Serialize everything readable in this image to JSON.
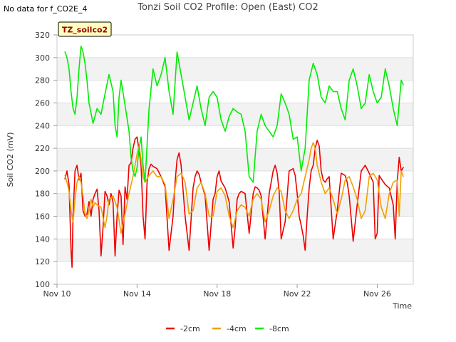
{
  "header": {
    "no_data_text": "No data for f_CO2E_4",
    "title": "Tonzi Soil CO2 Profile: Open (East) CO2"
  },
  "chart_data": {
    "type": "line",
    "title": "Tonzi Soil CO2 Profile: Open (East) CO2",
    "xlabel": "Time",
    "ylabel": "Soil CO2 (mV)",
    "ylim": [
      100,
      320
    ],
    "yticks": [
      100,
      120,
      140,
      160,
      180,
      200,
      220,
      240,
      260,
      280,
      300,
      320
    ],
    "xlim": [
      10,
      27.8
    ],
    "xticks": [
      {
        "value": 10,
        "label": "Nov 10"
      },
      {
        "value": 14,
        "label": "Nov 14"
      },
      {
        "value": 18,
        "label": "Nov 18"
      },
      {
        "value": 22,
        "label": "Nov 22"
      },
      {
        "value": 26,
        "label": "Nov 26"
      }
    ],
    "site_label": "TZ_soilco2",
    "grid": true,
    "legend_position": "bottom",
    "series": [
      {
        "name": "-2cm",
        "color": "#ee0000",
        "x": [
          10.4,
          10.5,
          10.6,
          10.7,
          10.75,
          10.8,
          10.9,
          11.0,
          11.1,
          11.2,
          11.3,
          11.4,
          11.5,
          11.6,
          11.7,
          11.8,
          11.9,
          12.0,
          12.1,
          12.2,
          12.3,
          12.4,
          12.5,
          12.6,
          12.7,
          12.8,
          12.9,
          13.0,
          13.1,
          13.2,
          13.3,
          13.4,
          13.5,
          13.6,
          13.7,
          13.8,
          13.9,
          14.0,
          14.1,
          14.2,
          14.3,
          14.4,
          14.5,
          14.6,
          14.7,
          14.8,
          14.9,
          15.0,
          15.2,
          15.4,
          15.6,
          15.8,
          15.9,
          16.0,
          16.1,
          16.2,
          16.4,
          16.6,
          16.8,
          16.9,
          17.0,
          17.1,
          17.2,
          17.4,
          17.6,
          17.8,
          17.9,
          18.0,
          18.1,
          18.2,
          18.4,
          18.6,
          18.8,
          18.9,
          19.0,
          19.1,
          19.2,
          19.4,
          19.6,
          19.8,
          19.9,
          20.0,
          20.1,
          20.2,
          20.4,
          20.6,
          20.8,
          20.9,
          21.0,
          21.1,
          21.2,
          21.4,
          21.6,
          21.8,
          21.9,
          22.0,
          22.1,
          22.2,
          22.3,
          22.4,
          22.5,
          22.6,
          22.7,
          22.8,
          22.9,
          23.0,
          23.1,
          23.2,
          23.3,
          23.4,
          23.5,
          23.6,
          23.8,
          24.0,
          24.2,
          24.4,
          24.5,
          24.6,
          24.8,
          25.0,
          25.2,
          25.4,
          25.6,
          25.8,
          25.9,
          26.0,
          26.1,
          26.2,
          26.4,
          26.6,
          26.8,
          26.9,
          27.0,
          27.1,
          27.2,
          27.3
        ],
        "values": [
          193,
          200,
          188,
          130,
          115,
          160,
          200,
          205,
          192,
          198,
          165,
          160,
          162,
          173,
          160,
          175,
          180,
          184,
          165,
          125,
          150,
          182,
          178,
          170,
          180,
          172,
          125,
          160,
          183,
          178,
          135,
          186,
          175,
          205,
          207,
          220,
          228,
          230,
          218,
          205,
          160,
          140,
          190,
          202,
          206,
          204,
          203,
          202,
          195,
          186,
          130,
          160,
          190,
          210,
          216,
          205,
          160,
          130,
          185,
          195,
          200,
          197,
          190,
          178,
          130,
          175,
          180,
          195,
          200,
          191,
          185,
          173,
          132,
          150,
          175,
          180,
          182,
          180,
          145,
          180,
          186,
          185,
          183,
          178,
          140,
          180,
          200,
          205,
          198,
          182,
          140,
          155,
          200,
          202,
          196,
          180,
          160,
          152,
          143,
          130,
          160,
          185,
          200,
          205,
          220,
          227,
          222,
          200,
          192,
          190,
          193,
          195,
          140,
          165,
          198,
          196,
          190,
          178,
          138,
          170,
          200,
          205,
          198,
          190,
          140,
          145,
          196,
          193,
          188,
          185,
          170,
          140,
          190,
          212,
          200,
          203
        ]
      },
      {
        "name": "-4cm",
        "color": "#f0a000",
        "x": [
          10.4,
          10.5,
          10.6,
          10.7,
          10.8,
          10.9,
          11.0,
          11.1,
          11.2,
          11.3,
          11.4,
          11.5,
          11.6,
          11.7,
          11.8,
          11.9,
          12.0,
          12.2,
          12.4,
          12.5,
          12.6,
          12.8,
          13.0,
          13.2,
          13.4,
          13.6,
          13.8,
          13.9,
          14.0,
          14.1,
          14.2,
          14.3,
          14.4,
          14.6,
          14.8,
          15.0,
          15.2,
          15.4,
          15.6,
          15.8,
          16.0,
          16.2,
          16.4,
          16.6,
          16.8,
          17.0,
          17.2,
          17.4,
          17.6,
          17.8,
          18.0,
          18.2,
          18.4,
          18.6,
          18.8,
          19.0,
          19.2,
          19.4,
          19.6,
          19.8,
          20.0,
          20.2,
          20.4,
          20.6,
          20.8,
          21.0,
          21.2,
          21.4,
          21.6,
          21.8,
          22.0,
          22.2,
          22.4,
          22.6,
          22.7,
          22.8,
          22.9,
          23.0,
          23.2,
          23.4,
          23.6,
          23.8,
          24.0,
          24.2,
          24.4,
          24.6,
          24.8,
          25.0,
          25.2,
          25.4,
          25.6,
          25.8,
          26.0,
          26.2,
          26.4,
          26.6,
          26.8,
          27.0,
          27.1,
          27.2,
          27.3
        ],
        "values": [
          196,
          190,
          182,
          165,
          155,
          175,
          190,
          195,
          190,
          178,
          162,
          158,
          165,
          175,
          168,
          172,
          170,
          168,
          150,
          160,
          175,
          178,
          168,
          145,
          162,
          180,
          195,
          205,
          215,
          222,
          210,
          195,
          190,
          196,
          200,
          195,
          195,
          188,
          158,
          175,
          195,
          198,
          190,
          162,
          165,
          185,
          190,
          180,
          160,
          160,
          182,
          185,
          178,
          160,
          150,
          165,
          170,
          168,
          160,
          175,
          180,
          175,
          155,
          165,
          178,
          185,
          182,
          165,
          158,
          165,
          175,
          180,
          195,
          210,
          220,
          225,
          220,
          205,
          190,
          180,
          185,
          175,
          162,
          175,
          192,
          195,
          186,
          175,
          158,
          165,
          195,
          198,
          192,
          168,
          158,
          180,
          190,
          192,
          160,
          200,
          195
        ]
      },
      {
        "name": "-8cm",
        "color": "#00ee00",
        "x": [
          10.4,
          10.5,
          10.6,
          10.7,
          10.8,
          10.9,
          11.0,
          11.1,
          11.2,
          11.3,
          11.4,
          11.5,
          11.6,
          11.8,
          12.0,
          12.2,
          12.4,
          12.6,
          12.8,
          12.9,
          13.0,
          13.1,
          13.2,
          13.4,
          13.6,
          13.7,
          13.8,
          13.9,
          14.0,
          14.1,
          14.2,
          14.3,
          14.4,
          14.6,
          14.8,
          15.0,
          15.2,
          15.4,
          15.6,
          15.8,
          16.0,
          16.2,
          16.4,
          16.6,
          16.8,
          17.0,
          17.2,
          17.4,
          17.6,
          17.8,
          18.0,
          18.2,
          18.4,
          18.6,
          18.8,
          19.0,
          19.2,
          19.4,
          19.6,
          19.8,
          20.0,
          20.2,
          20.4,
          20.6,
          20.8,
          21.0,
          21.2,
          21.4,
          21.6,
          21.8,
          22.0,
          22.2,
          22.4,
          22.6,
          22.8,
          23.0,
          23.2,
          23.4,
          23.6,
          23.8,
          24.0,
          24.2,
          24.4,
          24.6,
          24.8,
          25.0,
          25.2,
          25.4,
          25.6,
          25.8,
          26.0,
          26.2,
          26.4,
          26.6,
          26.8,
          27.0,
          27.1,
          27.2,
          27.3
        ],
        "values": [
          305,
          300,
          290,
          270,
          255,
          250,
          265,
          290,
          310,
          305,
          295,
          280,
          260,
          242,
          255,
          250,
          268,
          285,
          270,
          240,
          230,
          265,
          280,
          258,
          235,
          212,
          200,
          195,
          203,
          220,
          230,
          205,
          190,
          255,
          290,
          275,
          285,
          300,
          270,
          250,
          305,
          285,
          265,
          245,
          260,
          275,
          255,
          240,
          265,
          270,
          265,
          245,
          235,
          248,
          255,
          252,
          250,
          235,
          195,
          190,
          235,
          250,
          240,
          235,
          230,
          240,
          268,
          260,
          250,
          228,
          230,
          200,
          220,
          280,
          295,
          285,
          265,
          260,
          275,
          270,
          270,
          255,
          245,
          280,
          290,
          275,
          255,
          260,
          285,
          270,
          260,
          265,
          290,
          275,
          255,
          240,
          260,
          280,
          276
        ]
      }
    ]
  }
}
